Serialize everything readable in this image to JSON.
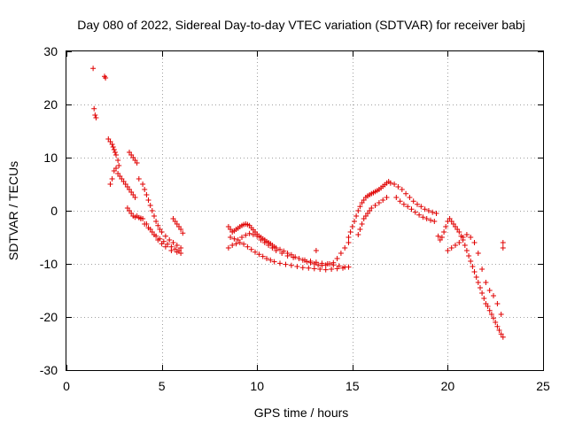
{
  "chart_data": {
    "type": "scatter",
    "title": "Day 080 of 2022, Sidereal Day-to-day VTEC variation (SDTVAR) for receiver babj",
    "xlabel": "GPS time / hours",
    "ylabel": "SDTVAR / TECUs",
    "xlim": [
      0,
      25
    ],
    "ylim": [
      -30,
      30
    ],
    "xticks": [
      0,
      5,
      10,
      15,
      20,
      25
    ],
    "yticks": [
      -30,
      -20,
      -10,
      0,
      10,
      20,
      30
    ],
    "xtick_labels": [
      "0",
      "5",
      "10",
      "15",
      "20",
      "25"
    ],
    "ytick_labels": [
      "-30",
      "-20",
      "-10",
      "0",
      "10",
      "20",
      "30"
    ],
    "grid": true,
    "marker": "+",
    "color": "#e00000",
    "series": [
      {
        "name": "SDTVAR",
        "x": [
          1.4,
          1.45,
          1.5,
          1.55,
          2.0,
          2.05,
          2.2,
          2.3,
          2.4,
          2.45,
          2.5,
          2.55,
          2.6,
          2.7,
          2.75,
          2.3,
          2.4,
          2.5,
          2.6,
          2.7,
          2.8,
          2.9,
          3.0,
          3.1,
          3.2,
          3.3,
          3.4,
          3.5,
          3.6,
          3.3,
          3.4,
          3.5,
          3.6,
          3.7,
          3.2,
          3.3,
          3.4,
          3.5,
          3.6,
          3.7,
          3.8,
          3.9,
          4.0,
          4.2,
          4.4,
          4.6,
          4.8,
          5.0,
          5.2,
          5.5,
          5.8,
          6.0,
          3.8,
          4.0,
          4.1,
          4.2,
          4.3,
          4.4,
          4.5,
          4.6,
          4.7,
          4.8,
          4.9,
          5.0,
          5.2,
          5.4,
          5.6,
          5.8,
          6.0,
          3.9,
          4.1,
          4.3,
          4.5,
          4.7,
          4.9,
          5.1,
          5.3,
          5.5,
          5.7,
          5.9,
          5.6,
          5.7,
          5.8,
          5.9,
          6.0,
          6.1,
          8.5,
          8.6,
          8.7,
          8.8,
          8.9,
          9.0,
          9.1,
          9.2,
          9.3,
          9.4,
          9.5,
          9.6,
          9.7,
          9.8,
          9.9,
          10.0,
          10.1,
          10.2,
          10.3,
          10.4,
          10.5,
          10.6,
          10.7,
          10.8,
          10.9,
          11.0,
          11.2,
          11.4,
          11.6,
          11.8,
          12.0,
          12.2,
          12.4,
          12.6,
          12.8,
          13.0,
          13.2,
          13.4,
          13.6,
          13.8,
          14.0,
          14.2,
          14.4,
          14.6,
          14.8,
          8.6,
          8.8,
          9.0,
          9.2,
          9.4,
          9.6,
          9.8,
          10.0,
          10.2,
          10.4,
          10.6,
          10.8,
          11.0,
          11.3,
          11.6,
          11.9,
          12.2,
          12.5,
          12.8,
          13.1,
          13.4,
          13.7,
          14.0,
          14.3,
          14.6,
          8.5,
          8.7,
          8.9,
          9.1,
          9.3,
          9.5,
          9.7,
          9.9,
          10.1,
          10.3,
          10.5,
          10.7,
          10.9,
          11.2,
          11.5,
          11.8,
          12.1,
          12.4,
          12.7,
          13.0,
          13.3,
          13.6,
          13.9,
          14.2,
          14.5,
          14.8,
          13.1,
          14.8,
          14.9,
          15.0,
          15.1,
          15.2,
          15.3,
          15.4,
          15.5,
          15.6,
          15.7,
          15.8,
          15.9,
          16.0,
          16.1,
          16.2,
          16.3,
          16.4,
          16.5,
          16.6,
          16.7,
          16.8,
          16.9,
          17.0,
          15.3,
          15.4,
          15.5,
          15.6,
          15.7,
          15.8,
          15.9,
          16.0,
          16.2,
          16.4,
          16.6,
          16.8,
          17.2,
          17.4,
          17.6,
          17.8,
          18.0,
          18.2,
          18.4,
          18.6,
          18.8,
          19.0,
          19.2,
          19.4,
          17.3,
          17.5,
          17.7,
          17.9,
          18.1,
          18.3,
          18.5,
          18.7,
          18.9,
          19.1,
          19.3,
          19.5,
          19.6,
          19.7,
          19.8,
          19.9,
          20.0,
          20.1,
          20.2,
          20.3,
          20.4,
          20.5,
          20.6,
          20.7,
          20.8,
          20.9,
          21.0,
          21.1,
          21.2,
          21.3,
          21.4,
          21.5,
          21.6,
          21.7,
          21.8,
          21.9,
          22.0,
          22.1,
          22.2,
          22.3,
          22.4,
          22.5,
          22.6,
          22.7,
          22.8,
          22.9,
          20.0,
          20.2,
          20.4,
          20.6,
          20.8,
          21.0,
          21.2,
          21.4,
          21.6,
          21.8,
          22.0,
          22.2,
          22.4,
          22.6,
          22.8,
          22.9,
          22.9
        ],
        "y": [
          26.8,
          19.2,
          18.0,
          17.5,
          25.3,
          25.0,
          13.5,
          13.0,
          12.5,
          12.0,
          11.5,
          11.0,
          10.5,
          9.5,
          8.5,
          5.0,
          6.0,
          7.5,
          8.0,
          7.0,
          6.5,
          6.0,
          5.5,
          5.0,
          4.5,
          4.0,
          3.5,
          3.0,
          2.5,
          11.0,
          10.5,
          10.0,
          9.5,
          9.0,
          0.5,
          0.0,
          -0.5,
          -1.0,
          -1.2,
          -1.0,
          -1.3,
          -1.4,
          -1.5,
          -2.5,
          -3.5,
          -4.5,
          -5.5,
          -6.2,
          -6.8,
          -7.5,
          -7.8,
          -8.0,
          6.0,
          5.0,
          4.0,
          3.0,
          2.0,
          1.0,
          0.0,
          -1.0,
          -2.0,
          -2.8,
          -3.5,
          -4.0,
          -4.8,
          -5.5,
          -6.0,
          -6.5,
          -7.0,
          -1.5,
          -2.5,
          -3.2,
          -4.0,
          -4.8,
          -5.3,
          -5.8,
          -6.3,
          -6.8,
          -7.2,
          -7.5,
          -1.5,
          -2.0,
          -2.5,
          -3.0,
          -3.5,
          -4.2,
          -3.0,
          -3.5,
          -4.0,
          -3.8,
          -3.5,
          -3.3,
          -3.0,
          -2.8,
          -2.6,
          -2.5,
          -2.6,
          -2.8,
          -3.2,
          -3.6,
          -4.0,
          -4.4,
          -4.8,
          -5.0,
          -5.3,
          -5.5,
          -5.8,
          -6.0,
          -6.2,
          -6.5,
          -6.8,
          -7.0,
          -7.3,
          -7.6,
          -8.0,
          -8.3,
          -8.7,
          -9.0,
          -9.3,
          -9.6,
          -9.8,
          -10.0,
          -10.2,
          -10.3,
          -10.2,
          -10.0,
          -9.8,
          -9.0,
          -8.0,
          -7.0,
          -6.0,
          -5.0,
          -5.3,
          -5.5,
          -5.0,
          -4.6,
          -4.3,
          -4.5,
          -4.8,
          -5.5,
          -6.0,
          -6.5,
          -7.0,
          -7.5,
          -8.0,
          -8.5,
          -8.8,
          -9.0,
          -9.3,
          -9.5,
          -9.7,
          -9.9,
          -10.0,
          -10.2,
          -10.4,
          -10.6,
          -7.0,
          -6.5,
          -6.2,
          -6.0,
          -6.3,
          -6.8,
          -7.3,
          -7.8,
          -8.2,
          -8.6,
          -9.0,
          -9.3,
          -9.6,
          -9.9,
          -10.1,
          -10.3,
          -10.5,
          -10.7,
          -10.8,
          -10.9,
          -11.0,
          -11.1,
          -11.0,
          -10.9,
          -10.8,
          -10.6,
          -7.5,
          -5.0,
          -4.0,
          -3.0,
          -2.0,
          -1.0,
          0.0,
          0.8,
          1.5,
          2.0,
          2.5,
          2.8,
          3.0,
          3.2,
          3.4,
          3.6,
          3.8,
          4.0,
          4.3,
          4.6,
          4.9,
          5.2,
          5.5,
          5.2,
          -4.5,
          -3.5,
          -2.5,
          -1.5,
          -1.0,
          -0.5,
          0.0,
          0.5,
          1.0,
          1.5,
          2.0,
          2.5,
          5.0,
          4.5,
          4.0,
          3.2,
          2.5,
          1.8,
          1.2,
          0.8,
          0.3,
          0.0,
          -0.3,
          -0.5,
          2.5,
          1.8,
          1.2,
          0.8,
          0.3,
          -0.3,
          -0.8,
          -1.2,
          -1.5,
          -1.8,
          -2.0,
          -4.8,
          -5.5,
          -5.0,
          -4.0,
          -3.0,
          -2.0,
          -1.5,
          -2.0,
          -2.5,
          -3.0,
          -3.5,
          -4.0,
          -4.8,
          -5.5,
          -6.5,
          -7.5,
          -8.5,
          -9.5,
          -10.5,
          -11.5,
          -12.5,
          -13.5,
          -14.5,
          -15.5,
          -16.5,
          -17.5,
          -18.0,
          -18.8,
          -19.5,
          -20.2,
          -21.0,
          -21.8,
          -22.5,
          -23.2,
          -23.8,
          -7.5,
          -7.0,
          -6.5,
          -6.0,
          -5.0,
          -4.5,
          -5.0,
          -6.0,
          -8.0,
          -11.0,
          -13.5,
          -15.0,
          -16.0,
          -17.5,
          -19.5,
          -6.0,
          -7.0
        ]
      }
    ]
  }
}
